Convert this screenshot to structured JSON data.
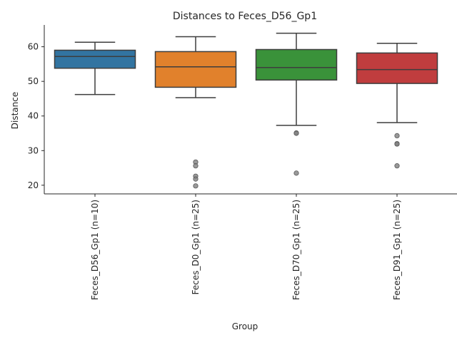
{
  "chart_data": {
    "type": "box",
    "title": "Distances to Feces_D56_Gp1",
    "xlabel": "Group",
    "ylabel": "Distance",
    "ylim": [
      17.5,
      66.3
    ],
    "yticks": [
      20,
      30,
      40,
      50,
      60
    ],
    "grid": false,
    "categories": [
      "Feces_D56_Gp1 (n=10)",
      "Feces_D0_Gp1 (n=25)",
      "Feces_D70_Gp1 (n=25)",
      "Feces_D91_Gp1 (n=25)"
    ],
    "boxes": [
      {
        "color": "#3274a1",
        "whisker_low": 46.2,
        "q1": 53.8,
        "median": 57.2,
        "q3": 59.0,
        "whisker_high": 61.3,
        "outliers": []
      },
      {
        "color": "#e1812c",
        "whisker_low": 45.3,
        "q1": 48.3,
        "median": 54.2,
        "q3": 58.6,
        "whisker_high": 62.9,
        "outliers": [
          26.7,
          25.6,
          22.6,
          21.8,
          19.8
        ]
      },
      {
        "color": "#3a923a",
        "whisker_low": 37.3,
        "q1": 50.4,
        "median": 54.0,
        "q3": 59.2,
        "whisker_high": 63.9,
        "outliers": [
          35.1,
          35.0,
          23.5
        ]
      },
      {
        "color": "#c03d3e",
        "whisker_low": 38.1,
        "q1": 49.4,
        "median": 53.4,
        "q3": 58.2,
        "whisker_high": 61.0,
        "outliers": [
          34.3,
          32.0,
          31.9,
          25.6
        ]
      }
    ]
  }
}
